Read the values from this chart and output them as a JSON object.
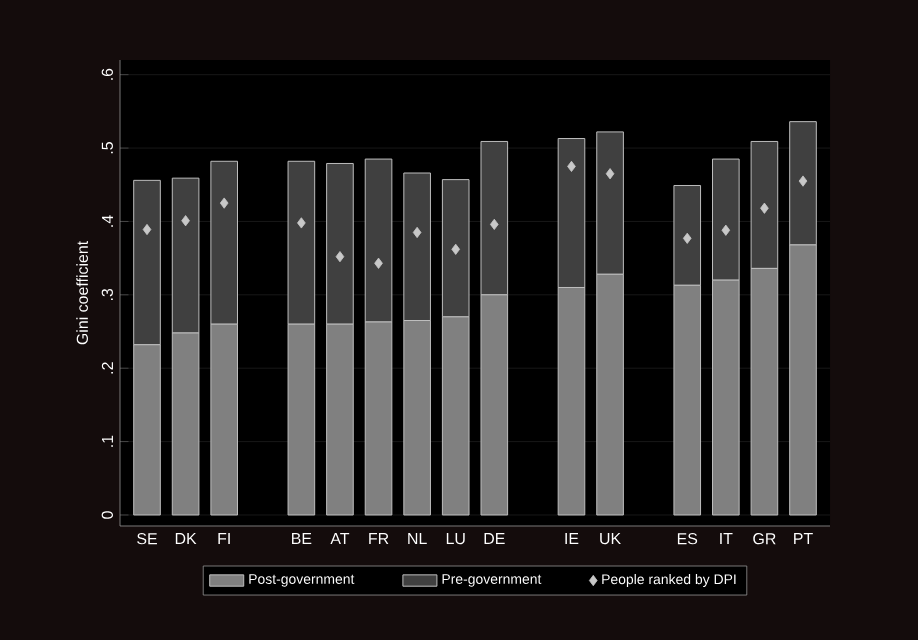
{
  "chart_data": {
    "type": "bar",
    "stacked": true,
    "ylabel": "Gini coefficient",
    "categories": [
      "SE",
      "DK",
      "FI",
      null,
      "BE",
      "AT",
      "FR",
      "NL",
      "LU",
      "DE",
      null,
      "IE",
      "UK",
      null,
      "ES",
      "IT",
      "GR",
      "PT"
    ],
    "series": [
      {
        "name": "Post-government",
        "color": "#808080",
        "values": [
          0.232,
          0.248,
          0.26,
          null,
          0.26,
          0.26,
          0.263,
          0.265,
          0.27,
          0.3,
          null,
          0.31,
          0.328,
          null,
          0.313,
          0.32,
          0.336,
          0.368
        ]
      },
      {
        "name": "Pre-government",
        "color": "#404040",
        "values": [
          0.224,
          0.211,
          0.222,
          null,
          0.222,
          0.219,
          0.222,
          0.201,
          0.187,
          0.209,
          null,
          0.203,
          0.194,
          null,
          0.136,
          0.165,
          0.173,
          0.168
        ]
      },
      {
        "name": "People ranked by DPI",
        "type": "scatter",
        "marker": "diamond",
        "color": "#c8c8c8",
        "values": [
          0.389,
          0.401,
          0.425,
          null,
          0.398,
          0.352,
          0.343,
          0.385,
          0.362,
          0.396,
          null,
          0.475,
          0.465,
          null,
          0.377,
          0.388,
          0.418,
          0.455
        ]
      }
    ],
    "ylim": [
      -0.015,
      0.62
    ],
    "yticks": [
      0,
      {
        "value": 0.1,
        "label": ".1"
      },
      {
        "value": 0.2,
        "label": ".2"
      },
      {
        "value": 0.3,
        "label": ".3"
      },
      {
        "value": 0.4,
        "label": ".4"
      },
      {
        "value": 0.5,
        "label": ".5"
      },
      {
        "value": 0.6,
        "label": ".6"
      }
    ],
    "grid": "y",
    "legend": "bottom"
  }
}
